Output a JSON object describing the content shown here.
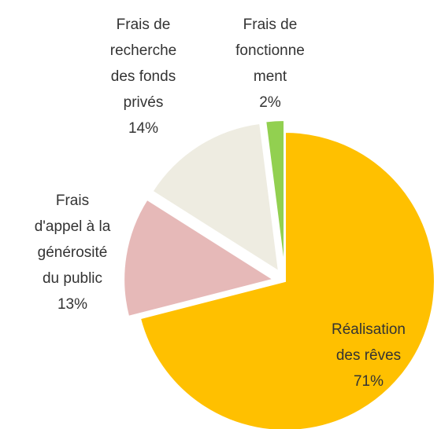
{
  "chart_data": {
    "type": "pie",
    "categories": [
      "Réalisation\ndes rêves",
      "Frais\nd'appel à la\ngénérosité\ndu public",
      "Frais de\nrecherche\ndes fonds\nprivés",
      "Frais de\nfonctionne\nment"
    ],
    "values": [
      71,
      13,
      14,
      2
    ],
    "value_labels": [
      "71%",
      "13%",
      "14%",
      "2%"
    ],
    "colors": [
      "#FFC000",
      "#E6B9B8",
      "#EEECE1",
      "#92D050"
    ]
  }
}
